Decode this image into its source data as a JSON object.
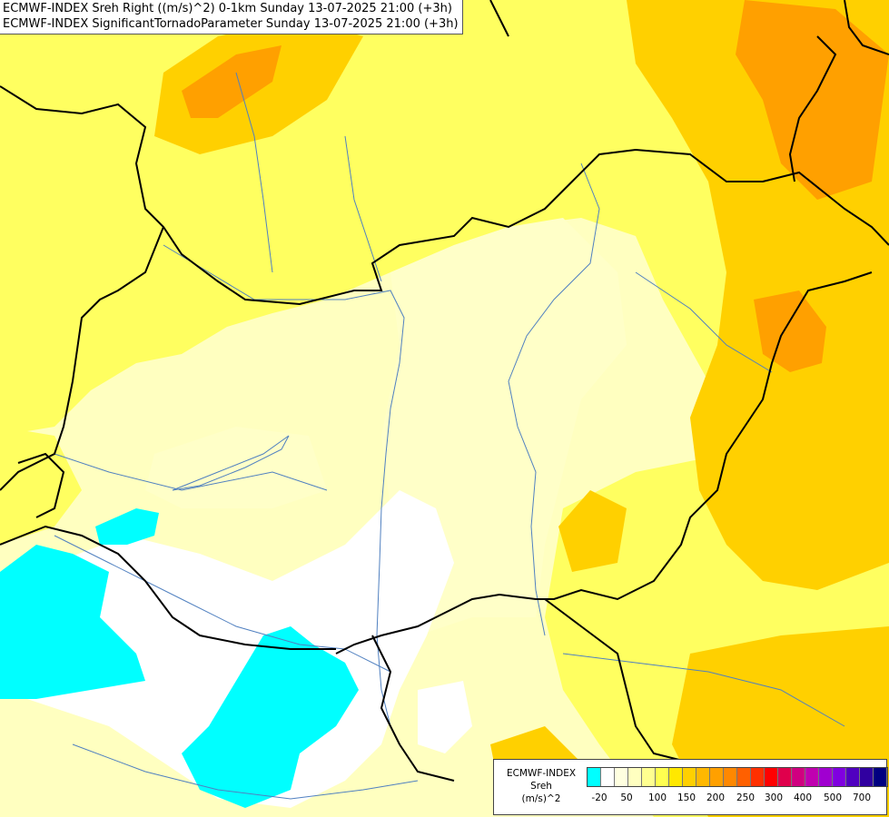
{
  "map": {
    "title_lines": [
      "ECMWF-INDEX Sreh Right ((m/s)^2) 0-1km Sunday 13-07-2025 21:00 (+3h)",
      "ECMWF-INDEX SignificantTornadoParameter Sunday 13-07-2025 21:00 (+3h)"
    ]
  },
  "legend": {
    "source": "ECMWF-INDEX",
    "variable": "Sreh",
    "unit": "(m/s)^2",
    "colors": [
      "#00ffff",
      "#ffffff",
      "#ffffe0",
      "#ffffc0",
      "#ffff90",
      "#ffff50",
      "#ffe800",
      "#ffd000",
      "#ffb800",
      "#ffa000",
      "#ff8800",
      "#ff6000",
      "#ff3000",
      "#ff0000",
      "#e0004c",
      "#d00080",
      "#c000b0",
      "#a000d0",
      "#8000e0",
      "#5000c0",
      "#3000a0",
      "#000080"
    ],
    "tick_labels": [
      "-20",
      "50",
      "100",
      "150",
      "200",
      "250",
      "300",
      "400",
      "500",
      "700"
    ]
  },
  "colors": {
    "cyan_region": "#00ffff",
    "white_region": "#ffffff",
    "pale_yellow": "#ffffc0",
    "yellow": "#ffff60",
    "gold": "#ffd000",
    "orange": "#ffa000",
    "border_line": "#000000",
    "river_line": "#5080c0"
  }
}
